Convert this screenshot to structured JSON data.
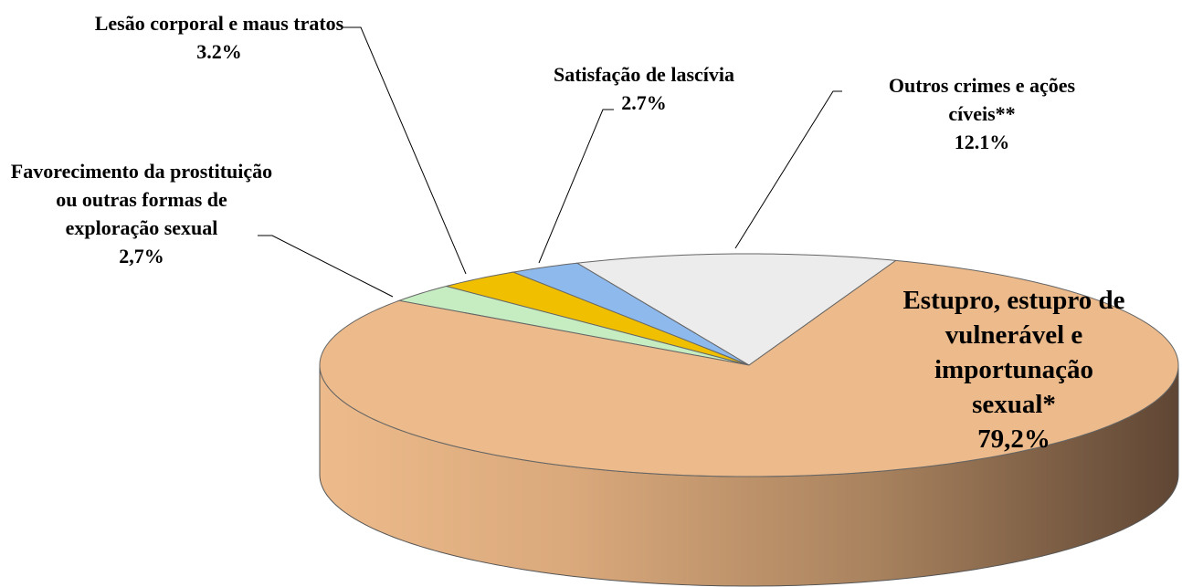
{
  "chart_data": {
    "type": "pie",
    "categories": [
      "Outros crimes e ações cíveis**",
      "Satisfação de lascívia",
      "Lesão corporal e maus tratos",
      "Favorecimento da prostituição ou outras formas de exploração sexual",
      "Estupro, estupro de vulnerável e importunação sexual*"
    ],
    "values": [
      12.1,
      2.7,
      3.2,
      2.7,
      79.2
    ],
    "value_labels": [
      "12.1%",
      "2.7%",
      "3.2%",
      "2,7%",
      "79,2%"
    ],
    "colors": [
      "#ececec",
      "#8db9ec",
      "#efbf00",
      "#c6ecc2",
      "#edbb8b"
    ]
  }
}
